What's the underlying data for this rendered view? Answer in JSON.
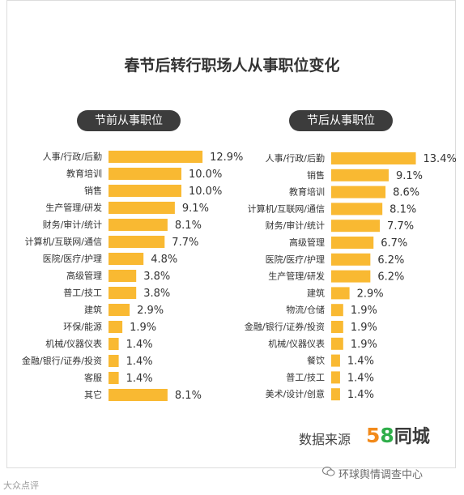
{
  "title": "春节后转行职场人从事职位变化",
  "left_header": "节前从事职位",
  "right_header": "节后从事职位",
  "source_label": "数据来源",
  "logo": {
    "digit5": "5",
    "digit8": "8",
    "name": "同城"
  },
  "watermark_left": "大众点评",
  "watermark_right": "环球舆情调查中心",
  "colors": {
    "bar": "#f9b932",
    "title": "#333333",
    "pill": "#3c3c3c"
  },
  "chart_data": [
    {
      "type": "bar",
      "orientation": "horizontal",
      "title": "节前从事职位",
      "unit": "%",
      "categories": [
        "人事/行政/后勤",
        "教育培训",
        "销售",
        "生产管理/研发",
        "财务/审计/统计",
        "计算机/互联网/通信",
        "医院/医疗/护理",
        "高级管理",
        "普工/技工",
        "建筑",
        "环保/能源",
        "机械/仪器仪表",
        "金融/银行/证券/投资",
        "客服",
        "其它"
      ],
      "values": [
        12.9,
        10.0,
        10.0,
        9.1,
        8.1,
        7.7,
        4.8,
        3.8,
        3.8,
        2.9,
        1.9,
        1.4,
        1.4,
        1.4,
        8.1
      ],
      "labels": [
        "12.9%",
        "10.0%",
        "10.0%",
        "9.1%",
        "8.1%",
        "7.7%",
        "4.8%",
        "3.8%",
        "3.8%",
        "2.9%",
        "1.9%",
        "1.4%",
        "1.4%",
        "1.4%",
        "8.1%"
      ]
    },
    {
      "type": "bar",
      "orientation": "horizontal",
      "title": "节后从事职位",
      "unit": "%",
      "categories": [
        "人事/行政/后勤",
        "销售",
        "教育培训",
        "计算机/互联网/通信",
        "财务/审计/统计",
        "高级管理",
        "医院/医疗/护理",
        "生产管理/研发",
        "建筑",
        "物流/仓储",
        "金融/银行/证券/投资",
        "机械/仪器仪表",
        "餐饮",
        "普工/技工",
        "美术/设计/创意"
      ],
      "values": [
        13.4,
        9.1,
        8.6,
        8.1,
        7.7,
        6.7,
        6.2,
        6.2,
        2.9,
        1.9,
        1.9,
        1.9,
        1.4,
        1.4,
        1.4
      ],
      "labels": [
        "13.4%",
        "9.1%",
        "8.6%",
        "8.1%",
        "7.7%",
        "6.7%",
        "6.2%",
        "6.2%",
        "2.9%",
        "1.9%",
        "1.9%",
        "1.9%",
        "1.4%",
        "1.4%",
        "1.4%"
      ]
    }
  ]
}
